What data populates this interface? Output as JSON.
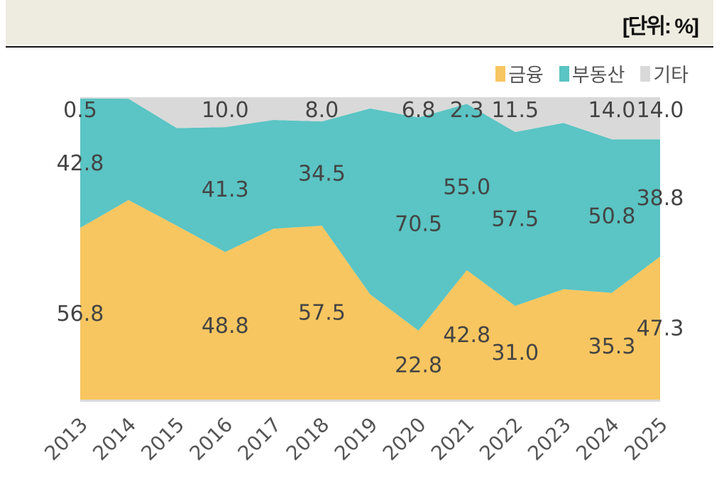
{
  "header": {
    "unit": "[단위: %]"
  },
  "chart_data": {
    "type": "area",
    "stacked": "percent",
    "title": "",
    "xlabel": "",
    "ylabel": "",
    "ylim": [
      0,
      100
    ],
    "grid": false,
    "legend_position": "top-right",
    "categories": [
      "2013",
      "2014",
      "2015",
      "2016",
      "2017",
      "2018",
      "2019",
      "2020",
      "2021",
      "2022",
      "2023",
      "2024",
      "2025"
    ],
    "series": [
      {
        "name": "금융",
        "color": "#f8c660",
        "values": [
          56.8,
          66.0,
          57.5,
          48.8,
          56.5,
          57.5,
          34.8,
          22.8,
          42.8,
          31.0,
          36.5,
          35.3,
          47.3
        ],
        "labels": [
          "56.8",
          null,
          null,
          "48.8",
          null,
          "57.5",
          null,
          "22.8",
          "42.8",
          "31.0",
          null,
          "35.3",
          "47.3"
        ]
      },
      {
        "name": "부동산",
        "color": "#5bc4c4",
        "values": [
          42.8,
          33.5,
          32.3,
          41.3,
          36.0,
          34.5,
          61.5,
          70.5,
          55.0,
          57.5,
          55.0,
          50.8,
          38.8
        ],
        "labels": [
          "42.8",
          null,
          null,
          "41.3",
          null,
          "34.5",
          null,
          "70.5",
          "55.0",
          "57.5",
          null,
          "50.8",
          "38.8"
        ]
      },
      {
        "name": "기타",
        "color": "#d9d9d9",
        "values": [
          0.5,
          0.5,
          10.2,
          10.0,
          7.5,
          8.0,
          3.7,
          6.8,
          2.3,
          11.5,
          8.5,
          14.0,
          14.0
        ],
        "labels": [
          "0.5",
          null,
          null,
          "10.0",
          null,
          "8.0",
          null,
          "6.8",
          "2.3",
          "11.5",
          null,
          "14.0",
          "14.0"
        ]
      }
    ]
  }
}
